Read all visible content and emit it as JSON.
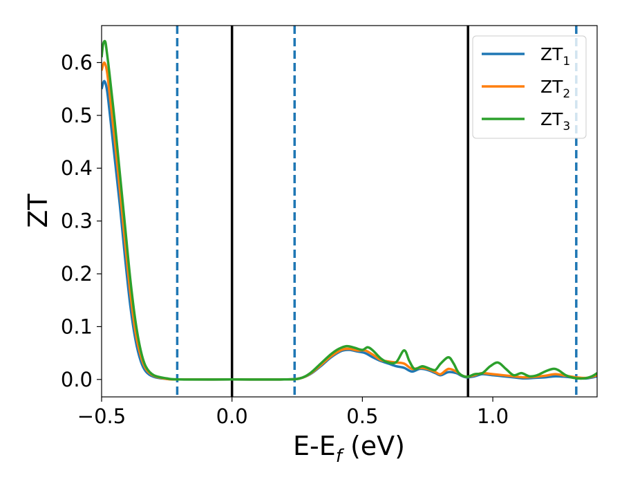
{
  "chart_data": {
    "type": "line",
    "xlabel": {
      "main": "E-E",
      "sub": "f",
      "unit": " (eV)"
    },
    "ylabel": "ZT",
    "xlim": [
      -0.5,
      1.4
    ],
    "ylim": [
      -0.033,
      0.67
    ],
    "x_ticks": [
      -0.5,
      0.0,
      0.5,
      1.0
    ],
    "x_tick_labels": [
      "−0.5",
      "0.0",
      "0.5",
      "1.0"
    ],
    "y_ticks": [
      0.0,
      0.1,
      0.2,
      0.3,
      0.4,
      0.5,
      0.6
    ],
    "y_tick_labels": [
      "0.0",
      "0.1",
      "0.2",
      "0.3",
      "0.4",
      "0.5",
      "0.6"
    ],
    "grid": false,
    "legend_position": "top-right",
    "vlines_solid": [
      0.0,
      0.905
    ],
    "vlines_dashed": [
      -0.21,
      0.24,
      1.32
    ],
    "colors": {
      "solid_vline": "#000000",
      "dashed_vline": "#1f77b4"
    },
    "series": [
      {
        "name": "ZT",
        "sub": "1",
        "color": "#1f77b4",
        "points": [
          [
            -0.5,
            0.55
          ],
          [
            -0.49,
            0.565
          ],
          [
            -0.48,
            0.55
          ],
          [
            -0.47,
            0.51
          ],
          [
            -0.45,
            0.42
          ],
          [
            -0.43,
            0.33
          ],
          [
            -0.41,
            0.23
          ],
          [
            -0.39,
            0.14
          ],
          [
            -0.37,
            0.075
          ],
          [
            -0.35,
            0.035
          ],
          [
            -0.33,
            0.015
          ],
          [
            -0.3,
            0.005
          ],
          [
            -0.25,
            0.001
          ],
          [
            -0.2,
            0.0
          ],
          [
            0.0,
            0.0
          ],
          [
            0.2,
            0.0
          ],
          [
            0.26,
            0.002
          ],
          [
            0.3,
            0.01
          ],
          [
            0.34,
            0.025
          ],
          [
            0.38,
            0.042
          ],
          [
            0.42,
            0.054
          ],
          [
            0.45,
            0.056
          ],
          [
            0.48,
            0.053
          ],
          [
            0.51,
            0.05
          ],
          [
            0.54,
            0.042
          ],
          [
            0.57,
            0.035
          ],
          [
            0.6,
            0.03
          ],
          [
            0.63,
            0.025
          ],
          [
            0.66,
            0.022
          ],
          [
            0.69,
            0.015
          ],
          [
            0.72,
            0.02
          ],
          [
            0.75,
            0.018
          ],
          [
            0.78,
            0.012
          ],
          [
            0.8,
            0.008
          ],
          [
            0.83,
            0.014
          ],
          [
            0.86,
            0.012
          ],
          [
            0.88,
            0.007
          ],
          [
            0.9,
            0.004
          ],
          [
            0.93,
            0.006
          ],
          [
            0.96,
            0.01
          ],
          [
            1.0,
            0.008
          ],
          [
            1.04,
            0.006
          ],
          [
            1.08,
            0.004
          ],
          [
            1.12,
            0.002
          ],
          [
            1.16,
            0.003
          ],
          [
            1.2,
            0.004
          ],
          [
            1.24,
            0.006
          ],
          [
            1.28,
            0.005
          ],
          [
            1.32,
            0.003
          ],
          [
            1.36,
            0.002
          ],
          [
            1.4,
            0.006
          ]
        ]
      },
      {
        "name": "ZT",
        "sub": "2",
        "color": "#ff7f0e",
        "points": [
          [
            -0.5,
            0.585
          ],
          [
            -0.49,
            0.6
          ],
          [
            -0.48,
            0.585
          ],
          [
            -0.47,
            0.545
          ],
          [
            -0.45,
            0.455
          ],
          [
            -0.43,
            0.36
          ],
          [
            -0.41,
            0.26
          ],
          [
            -0.39,
            0.165
          ],
          [
            -0.37,
            0.09
          ],
          [
            -0.35,
            0.045
          ],
          [
            -0.33,
            0.02
          ],
          [
            -0.3,
            0.007
          ],
          [
            -0.25,
            0.001
          ],
          [
            -0.2,
            0.0
          ],
          [
            0.0,
            0.0
          ],
          [
            0.2,
            0.0
          ],
          [
            0.26,
            0.002
          ],
          [
            0.3,
            0.011
          ],
          [
            0.34,
            0.027
          ],
          [
            0.38,
            0.044
          ],
          [
            0.42,
            0.056
          ],
          [
            0.45,
            0.058
          ],
          [
            0.48,
            0.055
          ],
          [
            0.51,
            0.055
          ],
          [
            0.54,
            0.047
          ],
          [
            0.57,
            0.037
          ],
          [
            0.6,
            0.034
          ],
          [
            0.63,
            0.032
          ],
          [
            0.66,
            0.03
          ],
          [
            0.69,
            0.02
          ],
          [
            0.72,
            0.022
          ],
          [
            0.75,
            0.02
          ],
          [
            0.78,
            0.014
          ],
          [
            0.8,
            0.01
          ],
          [
            0.83,
            0.02
          ],
          [
            0.86,
            0.015
          ],
          [
            0.88,
            0.008
          ],
          [
            0.9,
            0.005
          ],
          [
            0.93,
            0.008
          ],
          [
            0.96,
            0.012
          ],
          [
            1.0,
            0.01
          ],
          [
            1.04,
            0.008
          ],
          [
            1.08,
            0.006
          ],
          [
            1.12,
            0.004
          ],
          [
            1.16,
            0.005
          ],
          [
            1.2,
            0.007
          ],
          [
            1.24,
            0.01
          ],
          [
            1.28,
            0.007
          ],
          [
            1.32,
            0.004
          ],
          [
            1.36,
            0.003
          ],
          [
            1.4,
            0.008
          ]
        ]
      },
      {
        "name": "ZT",
        "sub": "3",
        "color": "#2ca02c",
        "points": [
          [
            -0.5,
            0.61
          ],
          [
            -0.495,
            0.632
          ],
          [
            -0.49,
            0.64
          ],
          [
            -0.485,
            0.638
          ],
          [
            -0.48,
            0.62
          ],
          [
            -0.47,
            0.58
          ],
          [
            -0.45,
            0.49
          ],
          [
            -0.43,
            0.39
          ],
          [
            -0.41,
            0.29
          ],
          [
            -0.39,
            0.19
          ],
          [
            -0.37,
            0.11
          ],
          [
            -0.35,
            0.055
          ],
          [
            -0.33,
            0.024
          ],
          [
            -0.3,
            0.008
          ],
          [
            -0.25,
            0.002
          ],
          [
            -0.2,
            0.0
          ],
          [
            0.0,
            0.0
          ],
          [
            0.2,
            0.0
          ],
          [
            0.26,
            0.002
          ],
          [
            0.3,
            0.012
          ],
          [
            0.34,
            0.03
          ],
          [
            0.38,
            0.048
          ],
          [
            0.41,
            0.058
          ],
          [
            0.44,
            0.063
          ],
          [
            0.47,
            0.06
          ],
          [
            0.5,
            0.056
          ],
          [
            0.52,
            0.061
          ],
          [
            0.54,
            0.055
          ],
          [
            0.57,
            0.04
          ],
          [
            0.6,
            0.032
          ],
          [
            0.63,
            0.033
          ],
          [
            0.66,
            0.055
          ],
          [
            0.68,
            0.035
          ],
          [
            0.7,
            0.02
          ],
          [
            0.73,
            0.025
          ],
          [
            0.76,
            0.02
          ],
          [
            0.78,
            0.018
          ],
          [
            0.8,
            0.03
          ],
          [
            0.83,
            0.042
          ],
          [
            0.85,
            0.03
          ],
          [
            0.87,
            0.012
          ],
          [
            0.9,
            0.005
          ],
          [
            0.93,
            0.01
          ],
          [
            0.96,
            0.012
          ],
          [
            0.99,
            0.025
          ],
          [
            1.02,
            0.032
          ],
          [
            1.05,
            0.02
          ],
          [
            1.08,
            0.008
          ],
          [
            1.11,
            0.012
          ],
          [
            1.14,
            0.006
          ],
          [
            1.17,
            0.008
          ],
          [
            1.2,
            0.015
          ],
          [
            1.23,
            0.02
          ],
          [
            1.25,
            0.018
          ],
          [
            1.28,
            0.008
          ],
          [
            1.31,
            0.003
          ],
          [
            1.35,
            0.002
          ],
          [
            1.38,
            0.006
          ],
          [
            1.4,
            0.012
          ]
        ]
      }
    ]
  }
}
